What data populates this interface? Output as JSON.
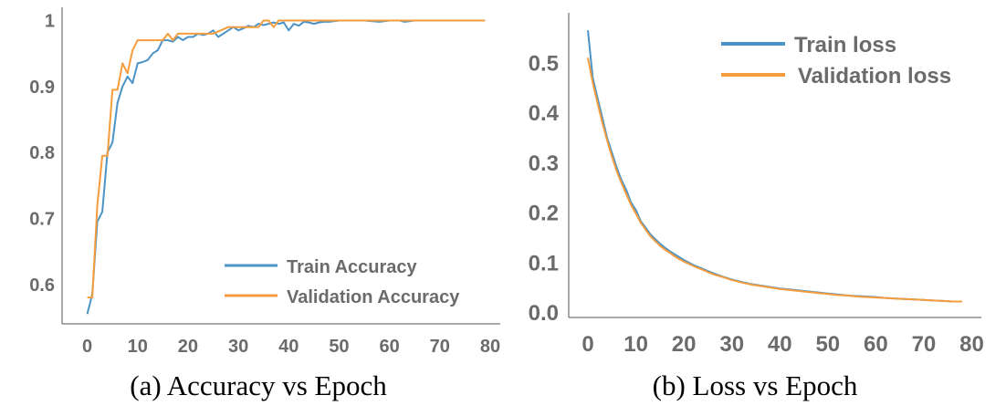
{
  "colors": {
    "train": "#4c93c6",
    "validation": "#f59c3c",
    "tick": "#6b6b6b",
    "axis": "#555555"
  },
  "chart_data": [
    {
      "type": "line",
      "caption": "(a) Accuracy vs Epoch",
      "xlim": [
        -5,
        82
      ],
      "ylim": [
        0.54,
        1.02
      ],
      "xticks": [
        0,
        10,
        20,
        30,
        40,
        50,
        60,
        70,
        80
      ],
      "yticks": [
        0.6,
        0.7,
        0.8,
        0.9,
        1
      ],
      "ytick_labels": [
        "0.6",
        "0.7",
        "0.8",
        "0.9",
        "1"
      ],
      "legend_position": "lower-right",
      "grid": false,
      "series": [
        {
          "name": "Train Accuracy",
          "color": "#4c93c6",
          "x": [
            0,
            1,
            2,
            3,
            4,
            5,
            6,
            7,
            8,
            9,
            10,
            11,
            12,
            13,
            14,
            15,
            16,
            17,
            18,
            19,
            20,
            21,
            22,
            23,
            24,
            25,
            26,
            27,
            28,
            29,
            30,
            31,
            32,
            33,
            34,
            35,
            36,
            37,
            38,
            39,
            40,
            41,
            42,
            43,
            44,
            45,
            46,
            47,
            48,
            49,
            50,
            52,
            55,
            58,
            60,
            62,
            63,
            65,
            70,
            75,
            79
          ],
          "y": [
            0.555,
            0.585,
            0.695,
            0.71,
            0.8,
            0.815,
            0.875,
            0.9,
            0.915,
            0.905,
            0.935,
            0.937,
            0.94,
            0.95,
            0.955,
            0.97,
            0.97,
            0.968,
            0.975,
            0.97,
            0.975,
            0.975,
            0.98,
            0.978,
            0.98,
            0.985,
            0.975,
            0.98,
            0.985,
            0.99,
            0.985,
            0.988,
            0.992,
            0.99,
            0.995,
            0.993,
            0.995,
            0.997,
            0.995,
            0.997,
            0.985,
            0.995,
            0.992,
            0.998,
            0.997,
            0.995,
            0.997,
            0.998,
            0.998,
            0.999,
            1,
            1,
            1,
            0.998,
            1,
            1,
            0.998,
            1,
            1,
            1,
            1
          ]
        },
        {
          "name": "Validation Accuracy",
          "color": "#f59c3c",
          "x": [
            0,
            1,
            2,
            3,
            4,
            5,
            6,
            7,
            8,
            9,
            10,
            11,
            15,
            16,
            17,
            18,
            19,
            20,
            22,
            25,
            28,
            29,
            30,
            31,
            32,
            33,
            34,
            35,
            36,
            37,
            38,
            39,
            40,
            41,
            42,
            45,
            50,
            52,
            55,
            60,
            65,
            70,
            75,
            79
          ],
          "y": [
            0.58,
            0.58,
            0.72,
            0.795,
            0.795,
            0.895,
            0.895,
            0.935,
            0.92,
            0.955,
            0.97,
            0.97,
            0.97,
            0.98,
            0.97,
            0.98,
            0.98,
            0.98,
            0.98,
            0.98,
            0.99,
            0.99,
            0.99,
            0.99,
            0.99,
            0.99,
            0.99,
            1,
            1,
            0.99,
            1,
            1,
            1,
            1,
            1,
            1,
            1,
            1,
            1,
            1,
            1,
            1,
            1,
            1
          ]
        }
      ]
    },
    {
      "type": "line",
      "caption": "(b) Loss vs Epoch",
      "xlim": [
        -4,
        82
      ],
      "ylim": [
        -0.01,
        0.6
      ],
      "xticks": [
        0,
        10,
        20,
        30,
        40,
        50,
        60,
        70,
        80
      ],
      "yticks": [
        0.0,
        0.1,
        0.2,
        0.3,
        0.4,
        0.5
      ],
      "ytick_labels": [
        "0.0",
        "0.1",
        "0.2",
        "0.3",
        "0.4",
        "0.5"
      ],
      "legend_position": "upper-right",
      "grid": false,
      "series": [
        {
          "name": "Train loss",
          "color": "#4c93c6",
          "x": [
            0,
            1,
            2,
            3,
            4,
            5,
            6,
            7,
            8,
            9,
            10,
            11,
            12,
            13,
            14,
            15,
            16,
            17,
            18,
            19,
            20,
            22,
            24,
            26,
            28,
            30,
            32,
            34,
            36,
            38,
            40,
            42,
            44,
            46,
            48,
            50,
            52,
            54,
            56,
            58,
            60,
            62,
            64,
            66,
            68,
            70,
            72,
            74,
            76,
            78
          ],
          "y": [
            0.565,
            0.47,
            0.43,
            0.39,
            0.35,
            0.32,
            0.29,
            0.265,
            0.245,
            0.22,
            0.205,
            0.183,
            0.17,
            0.157,
            0.147,
            0.138,
            0.13,
            0.123,
            0.117,
            0.111,
            0.105,
            0.095,
            0.087,
            0.079,
            0.072,
            0.066,
            0.061,
            0.057,
            0.054,
            0.051,
            0.048,
            0.046,
            0.044,
            0.042,
            0.04,
            0.038,
            0.036,
            0.034,
            0.033,
            0.032,
            0.031,
            0.029,
            0.028,
            0.027,
            0.026,
            0.025,
            0.024,
            0.023,
            0.022,
            0.022
          ]
        },
        {
          "name": "Validation loss",
          "color": "#f59c3c",
          "x": [
            0,
            1,
            2,
            3,
            4,
            5,
            6,
            7,
            8,
            9,
            10,
            11,
            12,
            13,
            14,
            15,
            16,
            17,
            18,
            19,
            20,
            22,
            24,
            26,
            28,
            30,
            32,
            34,
            36,
            38,
            40,
            42,
            44,
            46,
            48,
            50,
            52,
            54,
            56,
            58,
            60,
            62,
            64,
            66,
            68,
            70,
            72,
            74,
            76,
            78
          ],
          "y": [
            0.51,
            0.46,
            0.42,
            0.38,
            0.345,
            0.312,
            0.283,
            0.259,
            0.237,
            0.215,
            0.198,
            0.18,
            0.166,
            0.153,
            0.143,
            0.134,
            0.126,
            0.12,
            0.113,
            0.107,
            0.102,
            0.093,
            0.085,
            0.077,
            0.071,
            0.065,
            0.06,
            0.056,
            0.053,
            0.05,
            0.047,
            0.045,
            0.043,
            0.041,
            0.039,
            0.037,
            0.035,
            0.034,
            0.032,
            0.031,
            0.03,
            0.029,
            0.028,
            0.027,
            0.026,
            0.025,
            0.024,
            0.023,
            0.022,
            0.022
          ]
        }
      ]
    }
  ]
}
